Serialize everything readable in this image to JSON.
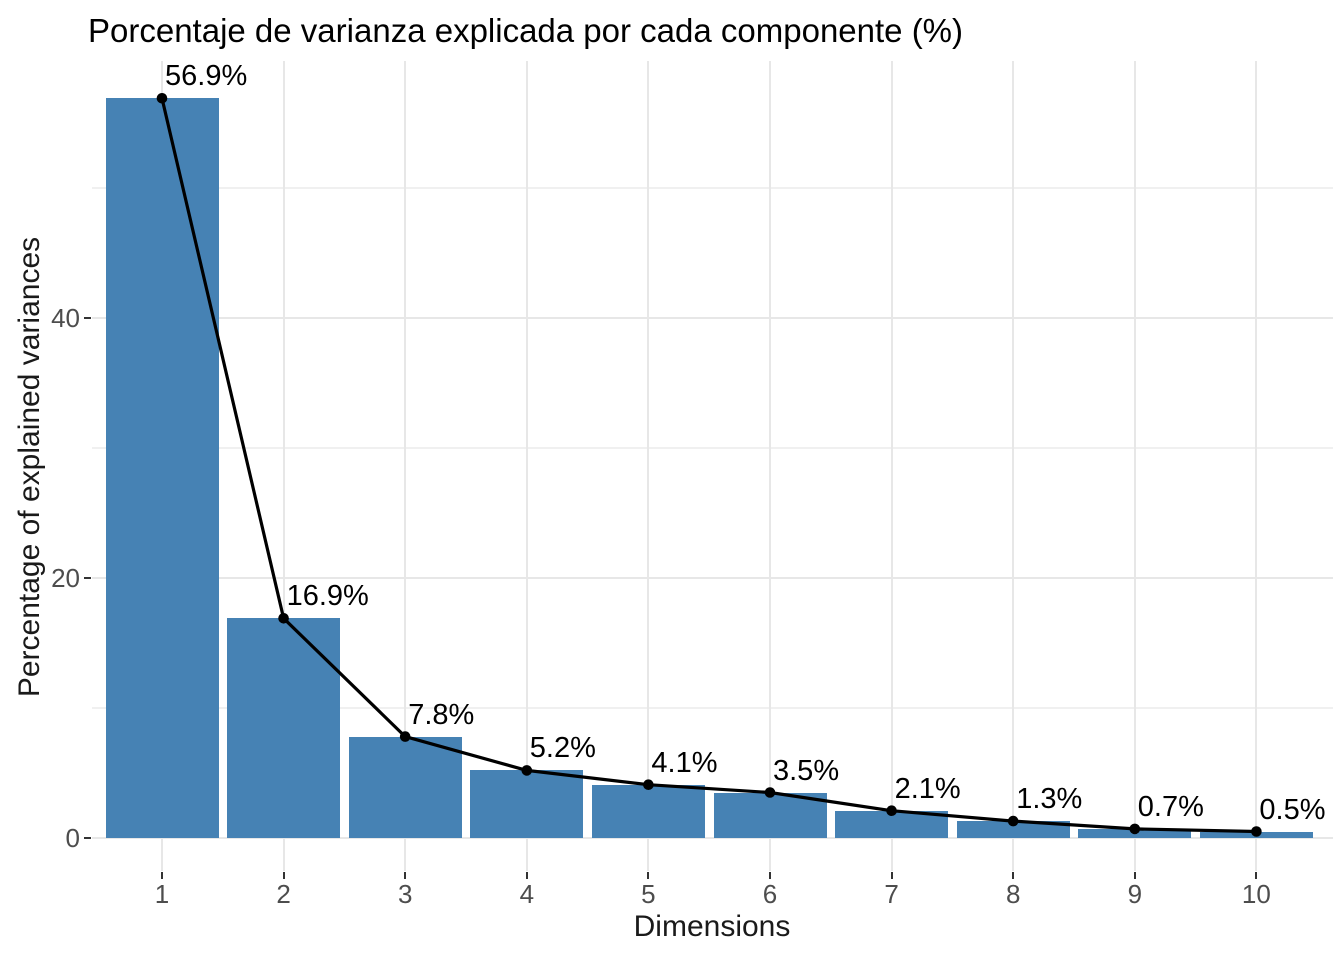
{
  "title": "Porcentaje de varianza explicada por cada componente (%)",
  "x_axis": {
    "label": "Dimensions",
    "tick_labels": [
      "1",
      "2",
      "3",
      "4",
      "5",
      "6",
      "7",
      "8",
      "9",
      "10"
    ]
  },
  "y_axis": {
    "label": "Percentage of explained variances",
    "tick_labels": [
      "0",
      "20",
      "40"
    ]
  },
  "chart_data": {
    "type": "bar",
    "subtype": "scree-plot-bars-with-line-and-points",
    "title": "Porcentaje de varianza explicada por cada componente (%)",
    "xlabel": "Dimensions",
    "ylabel": "Percentage of explained variances",
    "categories": [
      "1",
      "2",
      "3",
      "4",
      "5",
      "6",
      "7",
      "8",
      "9",
      "10"
    ],
    "values": [
      56.9,
      16.9,
      7.8,
      5.2,
      4.1,
      3.5,
      2.1,
      1.3,
      0.7,
      0.5
    ],
    "point_labels": [
      "56.9%",
      "16.9%",
      "7.8%",
      "5.2%",
      "4.1%",
      "3.5%",
      "2.1%",
      "1.3%",
      "0.7%",
      "0.5%"
    ],
    "y_major_ticks": [
      0,
      20,
      40
    ],
    "y_minor_gridlines": [
      10,
      30,
      50
    ],
    "ylim": [
      -2.5,
      59.8
    ],
    "grid": "on",
    "legend_position": "none",
    "colors": {
      "bar_fill": "#4682B4",
      "line": "#000000",
      "point": "#000000",
      "grid_major": "#E7E7E7",
      "grid_minor": "#F0F0F0",
      "tick_mark": "#333333",
      "axis_text": "#4D4D4D",
      "axis_title": "#1A1A1A",
      "title": "#000000",
      "background": "#FFFFFF"
    }
  }
}
